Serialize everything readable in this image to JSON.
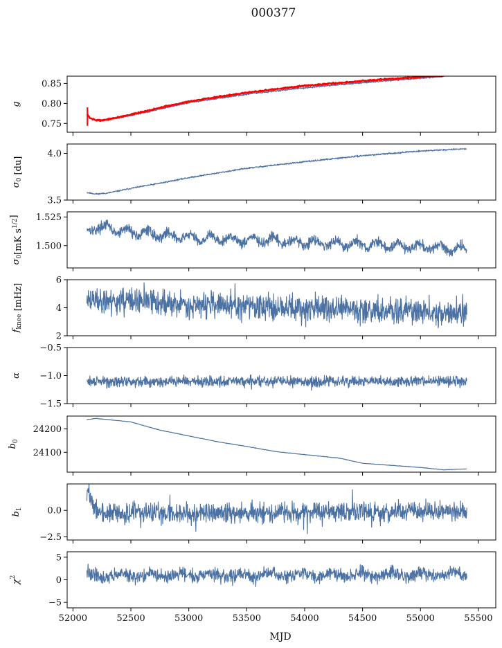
{
  "figure": {
    "title": "000377",
    "xlabel": "MJD"
  },
  "colors": {
    "series": "#4c72a4",
    "fit": "#ff0000",
    "axis": "#000000"
  },
  "chart_data": [
    {
      "type": "line",
      "ylabel": "g",
      "ylabel_sub": "",
      "xlim": [
        51950,
        55650
      ],
      "ylim": [
        0.728,
        0.868
      ],
      "xticks": [
        52000,
        52500,
        53000,
        53500,
        54000,
        54500,
        55000,
        55500
      ],
      "yticks": [
        0.75,
        0.8,
        0.85
      ],
      "ytick_labels": [
        "0.75",
        "0.80",
        "0.85"
      ],
      "series": [
        {
          "color": "#4c72a4",
          "noise": 0.001,
          "jitter_seed": 3,
          "x": [
            52120,
            52150,
            52200,
            52250,
            52300,
            52500,
            52750,
            53000,
            53500,
            54000,
            54500,
            55000,
            55200
          ],
          "y": [
            0.772,
            0.763,
            0.757,
            0.757,
            0.759,
            0.77,
            0.786,
            0.802,
            0.823,
            0.839,
            0.852,
            0.863,
            0.867
          ]
        },
        {
          "color": "#ff0000",
          "width": 2.2,
          "noise": 0.001,
          "jitter_seed": 7,
          "x": [
            52120,
            52150,
            52200,
            52250,
            52300,
            52500,
            52750,
            53000,
            53500,
            54000,
            54500,
            55000,
            55200
          ],
          "y": [
            0.773,
            0.763,
            0.758,
            0.758,
            0.76,
            0.772,
            0.789,
            0.805,
            0.827,
            0.844,
            0.856,
            0.866,
            0.869
          ]
        }
      ],
      "errorbar": {
        "x": 52125,
        "y": 0.767,
        "err": 0.023,
        "color": "#ff0000"
      }
    },
    {
      "type": "line",
      "ylabel": "σ",
      "ylabel_sub": "0",
      "ylabel_tail": " [du]",
      "xlim": [
        51950,
        55650
      ],
      "ylim": [
        3.5,
        4.1
      ],
      "xticks": [
        52000,
        52500,
        53000,
        53500,
        54000,
        54500,
        55000,
        55500
      ],
      "yticks": [
        3.5,
        4.0
      ],
      "ytick_labels": [
        "3.5",
        "4.0"
      ],
      "series": [
        {
          "color": "#4c72a4",
          "noise": 0.004,
          "jitter_seed": 11,
          "x": [
            52120,
            52200,
            52300,
            52500,
            52750,
            53000,
            53500,
            54000,
            54500,
            55000,
            55400
          ],
          "y": [
            3.58,
            3.565,
            3.575,
            3.625,
            3.68,
            3.74,
            3.84,
            3.91,
            3.975,
            4.025,
            4.05
          ]
        }
      ]
    },
    {
      "type": "line",
      "ylabel": "σ",
      "ylabel_sub": "0",
      "ylabel_tail": "[mK s",
      "ylabel_sup": "1/2",
      "ylabel_end": "]",
      "xlim": [
        51950,
        55650
      ],
      "ylim": [
        1.4805,
        1.5295
      ],
      "xticks": [
        52000,
        52500,
        53000,
        53500,
        54000,
        54500,
        55000,
        55500
      ],
      "yticks": [
        1.5,
        1.525
      ],
      "ytick_labels": [
        "1.500",
        "1.525"
      ],
      "series": [
        {
          "color": "#4c72a4",
          "noise": 0.0022,
          "jitter_seed": 17,
          "wander": 0.003,
          "wander_period": 180,
          "x": [
            52120,
            52200,
            52400,
            52700,
            53000,
            53500,
            54000,
            54500,
            55000,
            55400
          ],
          "y": [
            1.512,
            1.517,
            1.513,
            1.51,
            1.507,
            1.505,
            1.503,
            1.501,
            1.499,
            1.497
          ]
        }
      ]
    },
    {
      "type": "line",
      "ylabel": "f",
      "ylabel_sub": "knee",
      "ylabel_tail": " [mHz]",
      "xlim": [
        51950,
        55650
      ],
      "ylim": [
        2,
        6
      ],
      "xticks": [
        52000,
        52500,
        53000,
        53500,
        54000,
        54500,
        55000,
        55500
      ],
      "yticks": [
        2,
        4,
        6
      ],
      "ytick_labels": [
        "2",
        "4",
        "6"
      ],
      "series": [
        {
          "color": "#4c72a4",
          "noise": 0.45,
          "spikes": 0.9,
          "jitter_seed": 23,
          "x": [
            52120,
            52300,
            52800,
            53500,
            54500,
            55400
          ],
          "y": [
            4.6,
            4.5,
            4.3,
            4.1,
            3.85,
            3.6
          ]
        }
      ]
    },
    {
      "type": "line",
      "ylabel": "α",
      "ylabel_sub": "",
      "xlim": [
        51950,
        55650
      ],
      "ylim": [
        -1.5,
        -0.5
      ],
      "xticks": [
        52000,
        52500,
        53000,
        53500,
        54000,
        54500,
        55000,
        55500
      ],
      "yticks": [
        -1.5,
        -1.0,
        -0.5
      ],
      "ytick_labels": [
        "−1.5",
        "−1.0",
        "−0.5"
      ],
      "series": [
        {
          "color": "#4c72a4",
          "noise": 0.045,
          "spikes": 0.08,
          "jitter_seed": 29,
          "x": [
            52120,
            55400
          ],
          "y": [
            -1.11,
            -1.1
          ]
        }
      ]
    },
    {
      "type": "line",
      "ylabel": "b",
      "ylabel_sub": "0",
      "xlim": [
        51950,
        55650
      ],
      "ylim": [
        24015,
        24255
      ],
      "xticks": [
        52000,
        52500,
        53000,
        53500,
        54000,
        54500,
        55000,
        55500
      ],
      "yticks": [
        24100,
        24200
      ],
      "ytick_labels": [
        "24100",
        "24200"
      ],
      "series": [
        {
          "color": "#4c72a4",
          "noise": 0.5,
          "jitter_seed": 31,
          "x": [
            52120,
            52200,
            52500,
            52750,
            53000,
            53250,
            53500,
            53750,
            54000,
            54300,
            54500,
            55000,
            55200,
            55400
          ],
          "y": [
            24240,
            24245,
            24230,
            24195,
            24170,
            24145,
            24125,
            24103,
            24090,
            24075,
            24053,
            24035,
            24025,
            24029
          ]
        }
      ]
    },
    {
      "type": "line",
      "ylabel": "b",
      "ylabel_sub": "1",
      "xlim": [
        51950,
        55650
      ],
      "ylim": [
        -2.8,
        2.5
      ],
      "xticks": [
        52000,
        52500,
        53000,
        53500,
        54000,
        54500,
        55000,
        55500
      ],
      "yticks": [
        -2.5,
        0.0
      ],
      "ytick_labels": [
        "−2.5",
        "0.0"
      ],
      "series": [
        {
          "color": "#4c72a4",
          "noise": 0.45,
          "spikes": 1.1,
          "jitter_seed": 37,
          "x": [
            52120,
            52140,
            52180,
            52250,
            55400
          ],
          "y": [
            2.3,
            1.4,
            0.3,
            -0.3,
            -0.1
          ]
        }
      ]
    },
    {
      "type": "line",
      "ylabel": "χ",
      "ylabel_sub": "",
      "ylabel_sup": "2",
      "xlim": [
        51950,
        55650
      ],
      "ylim": [
        -6.2,
        6.2
      ],
      "xticks": [
        52000,
        52500,
        53000,
        53500,
        54000,
        54500,
        55000,
        55500
      ],
      "xtick_labels": [
        "52000",
        "52500",
        "53000",
        "53500",
        "54000",
        "54500",
        "55000",
        "55500"
      ],
      "yticks": [
        -5,
        0,
        5
      ],
      "ytick_labels": [
        "−5",
        "0",
        "5"
      ],
      "series": [
        {
          "color": "#4c72a4",
          "noise": 0.7,
          "spikes": 1.0,
          "jitter_seed": 41,
          "wander": 0.5,
          "wander_period": 260,
          "x": [
            52120,
            55400
          ],
          "y": [
            0.9,
            1.2
          ]
        }
      ]
    }
  ]
}
